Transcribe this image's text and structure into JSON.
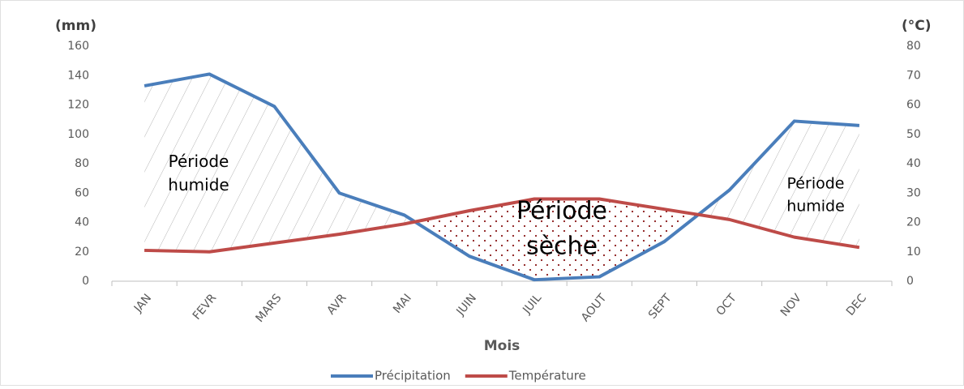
{
  "chart_data": {
    "type": "line",
    "y_label": "(mm)",
    "y2_label": "(°C)",
    "x_label": "Mois",
    "categories": [
      "JAN",
      "FEVR",
      "MARS",
      "AVR",
      "MAI",
      "JUIN",
      "JUIL",
      "AOUT",
      "SEPT",
      "OCT",
      "NOV",
      "DEC"
    ],
    "series": [
      {
        "name": "Précipitation",
        "color": "#4a7ebb",
        "values": [
          133,
          141,
          119,
          60,
          45,
          17,
          1,
          3,
          27,
          62,
          109,
          106
        ]
      },
      {
        "name": "Température",
        "color": "#be4b48",
        "axis": "y2",
        "values": [
          10.5,
          10,
          13,
          16,
          19.5,
          24,
          28,
          28,
          24.5,
          21,
          15,
          11.5
        ]
      }
    ],
    "ylim": [
      0,
      160
    ],
    "yticks": [
      0,
      20,
      40,
      60,
      80,
      100,
      120,
      140,
      160
    ],
    "y2lim": [
      0,
      80
    ],
    "y2ticks": [
      0,
      10,
      20,
      30,
      40,
      50,
      60,
      70,
      80
    ],
    "annotations": [
      {
        "lines": [
          "Période",
          "humide"
        ]
      },
      {
        "lines": [
          "Période",
          "sèche"
        ]
      },
      {
        "lines": [
          "Période",
          "humide"
        ]
      }
    ],
    "legend": "bottom"
  }
}
